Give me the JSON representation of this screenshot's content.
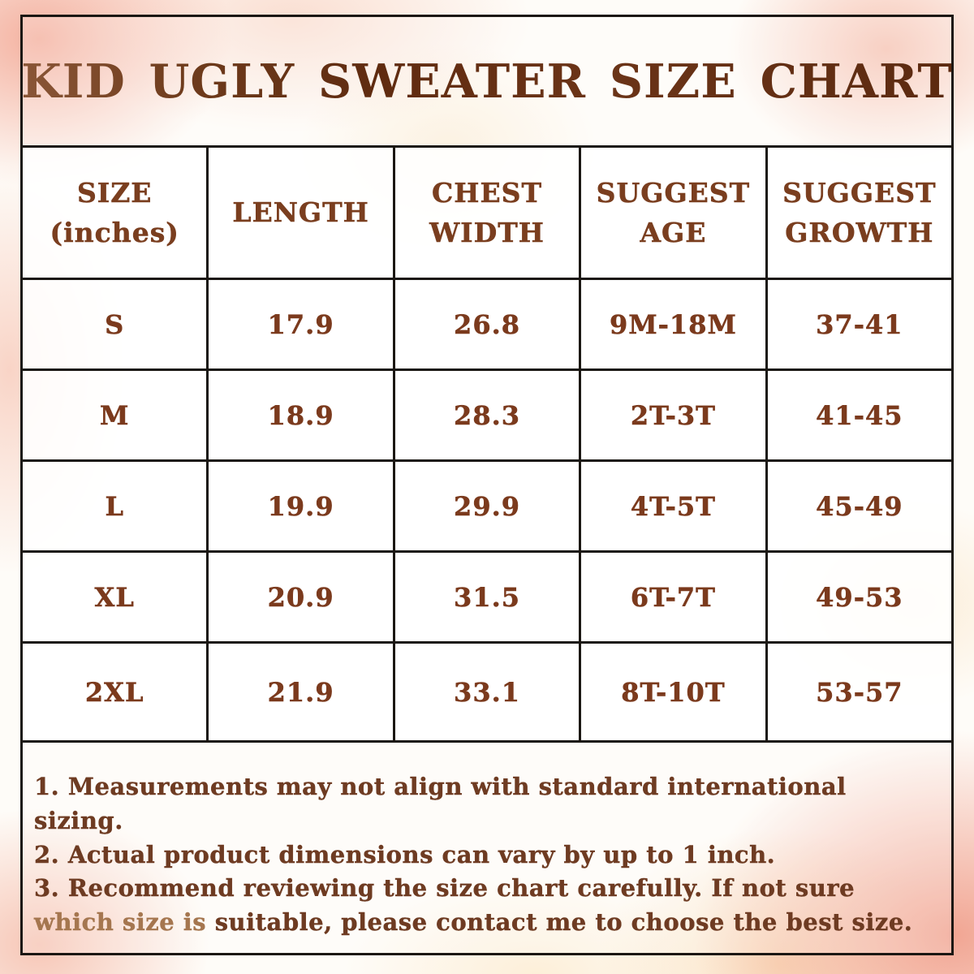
{
  "title": "KID UGLY SWEATER SIZE CHART",
  "colors": {
    "title_brown": "#6b3215",
    "header_brown": "#7a3e1f",
    "value_brown": "#7b3a1d",
    "note_brown": "#6e3b22",
    "note_light_brown": "#a5764f",
    "border_black": "#1b1713",
    "wash_pink": "#f3a996",
    "wash_cream": "#fae0af",
    "cell_white": "#ffffff"
  },
  "table": {
    "columns": [
      {
        "line1": "SIZE",
        "line2": "(inches)"
      },
      {
        "line1": "LENGTH",
        "line2": ""
      },
      {
        "line1": "CHEST",
        "line2": "WIDTH"
      },
      {
        "line1": "SUGGEST",
        "line2": "AGE"
      },
      {
        "line1": "SUGGEST",
        "line2": "GROWTH"
      }
    ],
    "rows": [
      {
        "cells": [
          "S",
          "17.9",
          "26.8",
          "9M-18M",
          "37-41"
        ]
      },
      {
        "cells": [
          "M",
          "18.9",
          "28.3",
          "2T-3T",
          "41-45"
        ]
      },
      {
        "cells": [
          "L",
          "19.9",
          "29.9",
          "4T-5T",
          "45-49"
        ]
      },
      {
        "cells": [
          "XL",
          "20.9",
          "31.5",
          "6T-7T",
          "49-53"
        ]
      },
      {
        "cells": [
          "2XL",
          "21.9",
          "33.1",
          "8T-10T",
          "53-57"
        ]
      }
    ]
  },
  "notes": [
    {
      "segments": [
        {
          "text": "1. Measurements may not align with standard international sizing.",
          "tone": "dark"
        }
      ]
    },
    {
      "segments": [
        {
          "text": "2. Actual product dimensions can vary by up to 1 inch.",
          "tone": "dark"
        }
      ]
    },
    {
      "segments": [
        {
          "text": "3. Recommend reviewing the size chart carefully. If not sure ",
          "tone": "dark"
        },
        {
          "text": "which size is",
          "tone": "light"
        },
        {
          "text": " suitable, please contact me to choose the best size.",
          "tone": "dark"
        }
      ]
    }
  ]
}
